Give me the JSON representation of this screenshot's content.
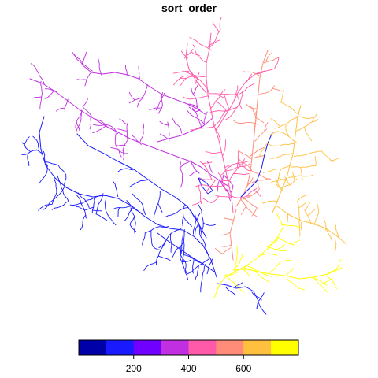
{
  "title": "sort_order",
  "legend": {
    "colors": [
      "#0000a8",
      "#1a1aff",
      "#7000ff",
      "#c030e0",
      "#ff5aaa",
      "#ff8c78",
      "#ffc040",
      "#ffff00"
    ],
    "range": [
      0,
      800
    ],
    "tick_values": [
      200,
      400,
      600
    ],
    "tick_labels": [
      "200",
      "400",
      "600"
    ]
  },
  "map": {
    "description_colors": {
      "west_network": "#1a1aff",
      "northwest_network": "#c030e0",
      "north_central_network": "#ff5aaa",
      "north_east_network": "#ff8c78",
      "east_network": "#ffc040",
      "southeast_network": "#ffff00",
      "deep_south": "#0000a8"
    }
  }
}
